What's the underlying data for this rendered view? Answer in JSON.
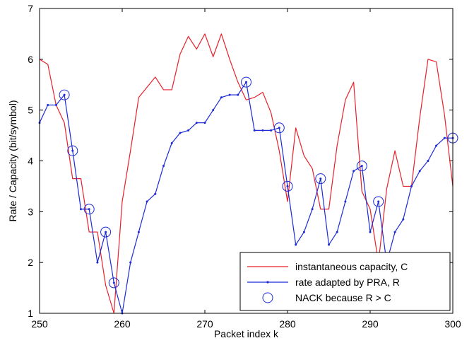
{
  "chart_data": {
    "type": "line",
    "xlabel": "Packet index k",
    "ylabel": "Rate / Capacity (bit/symbol)",
    "xlim": [
      250,
      300
    ],
    "ylim": [
      1,
      7
    ],
    "xticks": [
      250,
      260,
      270,
      280,
      290,
      300
    ],
    "yticks": [
      1,
      2,
      3,
      4,
      5,
      6,
      7
    ],
    "xtick_labels": [
      "250",
      "260",
      "270",
      "280",
      "290",
      "300"
    ],
    "ytick_labels": [
      "1",
      "2",
      "3",
      "4",
      "5",
      "6",
      "7"
    ],
    "grid": false,
    "legend_position": "bottom-right",
    "legend": [
      {
        "label": "instantaneous capacity, C",
        "color": "#e8202a",
        "marker": "none"
      },
      {
        "label": "rate adapted by PRA, R",
        "color": "#1c2bd6",
        "marker": "dot"
      },
      {
        "label": "NACK because R > C",
        "color": "#1c2bd6",
        "marker": "circle"
      }
    ],
    "series": [
      {
        "name": "instantaneous capacity, C",
        "color": "#e8202a",
        "x": [
          250,
          251,
          252,
          253,
          254,
          255,
          256,
          257,
          258,
          259,
          260,
          261,
          262,
          263,
          264,
          265,
          266,
          267,
          268,
          269,
          270,
          271,
          272,
          273,
          274,
          275,
          276,
          277,
          278,
          279,
          280,
          281,
          282,
          283,
          284,
          285,
          286,
          287,
          288,
          289,
          290,
          291,
          292,
          293,
          294,
          295,
          296,
          297,
          298,
          299,
          300
        ],
        "y": [
          6.0,
          5.9,
          5.1,
          4.75,
          3.65,
          3.65,
          2.6,
          2.6,
          1.55,
          1.0,
          3.2,
          4.2,
          5.25,
          5.45,
          5.65,
          5.4,
          5.4,
          6.1,
          6.45,
          6.2,
          6.5,
          6.05,
          6.5,
          6.0,
          5.55,
          5.2,
          5.25,
          5.35,
          4.95,
          4.2,
          3.2,
          4.65,
          4.1,
          3.85,
          3.05,
          3.05,
          4.3,
          5.2,
          5.55,
          3.4,
          3.05,
          2.0,
          3.45,
          4.2,
          3.5,
          3.5,
          4.85,
          6.0,
          5.95,
          4.9,
          3.5
        ]
      },
      {
        "name": "rate adapted by PRA, R",
        "color": "#1c2bd6",
        "x": [
          250,
          251,
          252,
          253,
          254,
          255,
          256,
          257,
          258,
          259,
          260,
          261,
          262,
          263,
          264,
          265,
          266,
          267,
          268,
          269,
          270,
          271,
          272,
          273,
          274,
          275,
          276,
          277,
          278,
          279,
          280,
          281,
          282,
          283,
          284,
          285,
          286,
          287,
          288,
          289,
          290,
          291,
          292,
          293,
          294,
          295,
          296,
          297,
          298,
          299,
          300
        ],
        "y": [
          4.75,
          5.1,
          5.1,
          5.3,
          4.2,
          3.05,
          3.05,
          2.0,
          2.6,
          1.6,
          1.0,
          2.0,
          2.6,
          3.2,
          3.35,
          3.9,
          4.35,
          4.55,
          4.6,
          4.75,
          4.75,
          5.0,
          5.25,
          5.3,
          5.3,
          5.55,
          4.6,
          4.6,
          4.6,
          4.65,
          3.5,
          2.35,
          2.6,
          3.05,
          3.65,
          2.35,
          2.6,
          3.2,
          3.8,
          3.9,
          2.6,
          3.2,
          2.0,
          2.6,
          2.85,
          3.5,
          3.8,
          4.0,
          4.3,
          4.45,
          4.45
        ]
      }
    ],
    "nack_points": {
      "name": "NACK because R > C",
      "x": [
        253,
        254,
        256,
        258,
        259,
        275,
        279,
        280,
        284,
        289,
        291,
        300
      ],
      "y": [
        5.3,
        4.2,
        3.05,
        2.6,
        1.6,
        5.55,
        4.65,
        3.5,
        3.65,
        3.9,
        3.2,
        4.45
      ]
    }
  }
}
